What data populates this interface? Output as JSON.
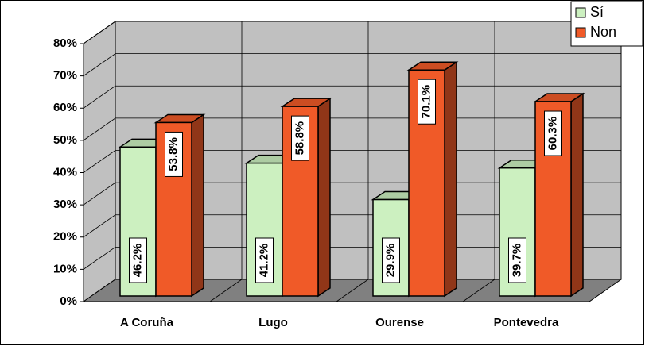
{
  "chart_data": {
    "type": "bar3d",
    "categories": [
      "A Coruña",
      "Lugo",
      "Ourense",
      "Pontevedra"
    ],
    "series": [
      {
        "name": "Sí",
        "color": "#ccf0c0",
        "values": [
          46.2,
          41.2,
          29.9,
          39.7
        ],
        "value_labels": [
          "46.2%",
          "41.2%",
          "29.9%",
          "39.7%"
        ]
      },
      {
        "name": "Non",
        "color": "#f05a28",
        "values": [
          53.8,
          58.8,
          70.1,
          60.3
        ],
        "value_labels": [
          "53.8%",
          "58.8%",
          "70.1%",
          "60.3%"
        ]
      }
    ],
    "ylim": [
      0,
      80
    ],
    "yticks": [
      {
        "value": 0,
        "label": "0%"
      },
      {
        "value": 10,
        "label": "10%"
      },
      {
        "value": 20,
        "label": "20%"
      },
      {
        "value": 30,
        "label": "30%"
      },
      {
        "value": 40,
        "label": "40%"
      },
      {
        "value": 50,
        "label": "50%"
      },
      {
        "value": 60,
        "label": "60%"
      },
      {
        "value": 70,
        "label": "70%"
      },
      {
        "value": 80,
        "label": "80%"
      }
    ],
    "grid": true,
    "legend": "top-right"
  }
}
